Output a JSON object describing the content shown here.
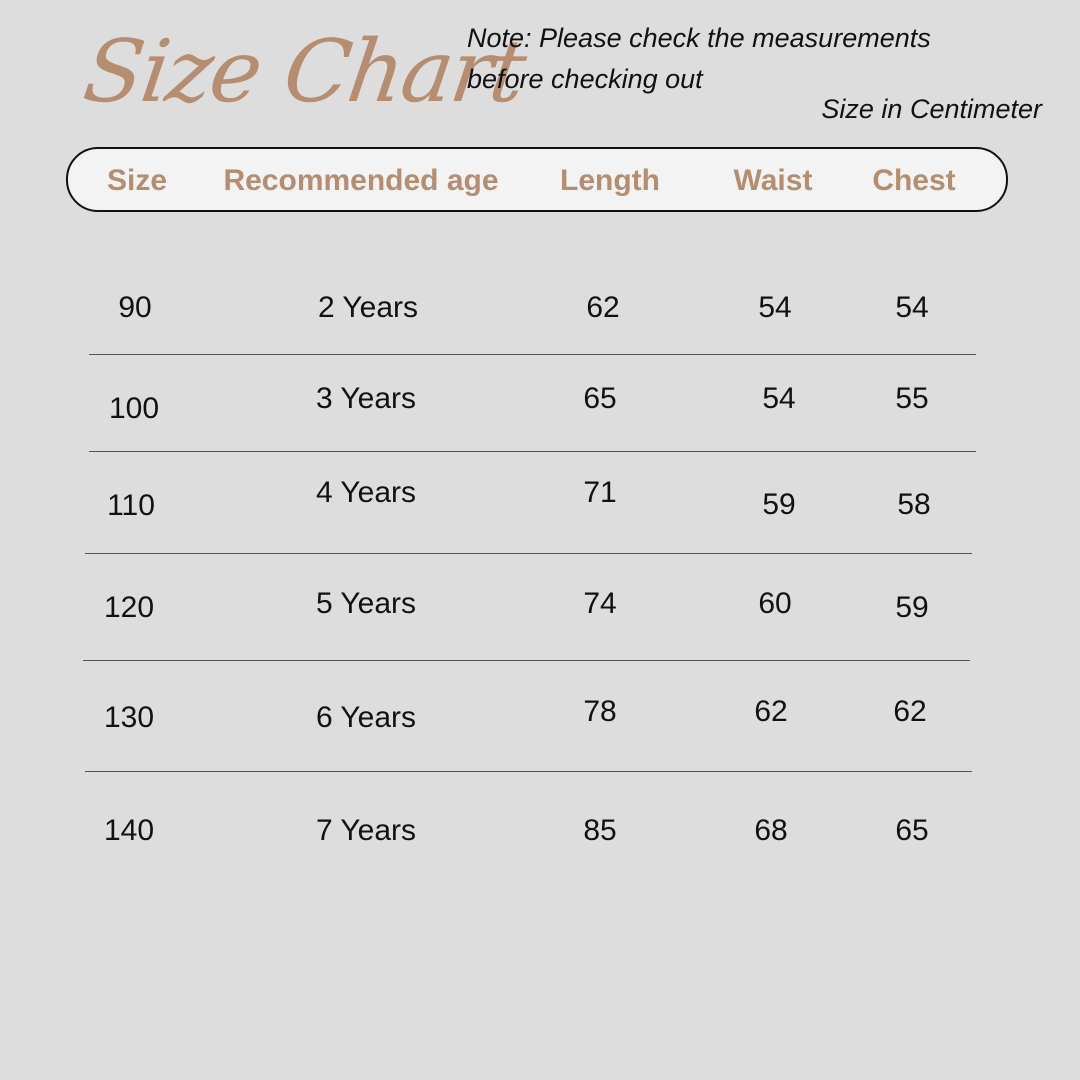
{
  "title": "Size Chart",
  "note": "Note: Please check the measurements before checking out",
  "unit_label": "Size in Centimeter",
  "colors": {
    "accent": "#b58d70",
    "background": "#dddddd",
    "header_fill": "#f3f3f3"
  },
  "columns": [
    "Size",
    "Recommended age",
    "Length",
    "Waist",
    "Chest"
  ],
  "rows": [
    [
      "90",
      "2 Years",
      "62",
      "54",
      "54"
    ],
    [
      "100",
      "3 Years",
      "65",
      "54",
      "55"
    ],
    [
      "110",
      "4 Years",
      "71",
      "59",
      "58"
    ],
    [
      "120",
      "5 Years",
      "74",
      "60",
      "59"
    ],
    [
      "130",
      "6 Years",
      "78",
      "62",
      "62"
    ],
    [
      "140",
      "7 Years",
      "85",
      "68",
      "65"
    ]
  ]
}
